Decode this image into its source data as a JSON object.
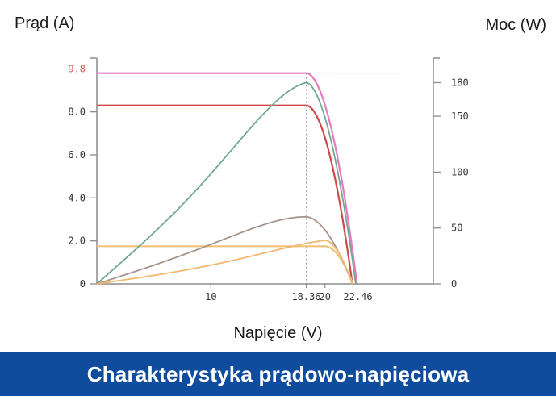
{
  "page": {
    "banner_title": "Charakterystyka prądowo-napięciowa"
  },
  "chart_data": {
    "type": "line",
    "title": "",
    "left_axis": {
      "label": "Prąd (A)",
      "ylim": [
        0,
        10.5
      ],
      "ticks": [
        0,
        2.0,
        4.0,
        6.0,
        8.0
      ],
      "tick_labels": [
        "0",
        "2.0",
        "4.0",
        "6.0",
        "8.0"
      ],
      "highlight_tick": {
        "value": 9.8,
        "label": "9.8",
        "color": "#e05a5a"
      }
    },
    "right_axis": {
      "label": "Moc (W)",
      "ylim": [
        0,
        202
      ],
      "ticks": [
        0,
        50,
        100,
        150,
        180
      ],
      "tick_labels": [
        "0",
        "50",
        "100",
        "150",
        "180"
      ]
    },
    "x_axis": {
      "label": "Napięcie (V)",
      "xlim": [
        0,
        29.5
      ],
      "ticks": [
        10,
        18.36,
        20,
        22.46
      ],
      "tick_labels": [
        "10",
        "18.36",
        "20",
        "22.46"
      ]
    },
    "mpp": {
      "voltage": 18.36,
      "current": 9.8,
      "power": 180
    },
    "series": [
      {
        "kind": "current",
        "color": "#e57ac4",
        "isc": 9.8,
        "imp": 9.8,
        "vmp": 18.36,
        "voc": 22.8
      },
      {
        "kind": "current",
        "color": "#d04848",
        "isc": 8.3,
        "imp": 8.3,
        "vmp": 18.36,
        "voc": 22.4
      },
      {
        "kind": "current",
        "color": "#efc27a",
        "isc": 1.75,
        "imp": 1.75,
        "vmp": 20.0,
        "voc": 22.46
      },
      {
        "kind": "power",
        "color": "#6fa88e",
        "vmp": 18.36,
        "pmax": 180,
        "voc": 22.7,
        "slope": 9.0
      },
      {
        "kind": "power",
        "color": "#a6938a",
        "vmp": 18.36,
        "pmax": 60,
        "voc": 22.4,
        "slope": 3.3
      },
      {
        "kind": "power",
        "color": "#f0b870",
        "vmp": 20.0,
        "pmax": 39,
        "voc": 22.4,
        "slope": 1.5
      }
    ]
  }
}
